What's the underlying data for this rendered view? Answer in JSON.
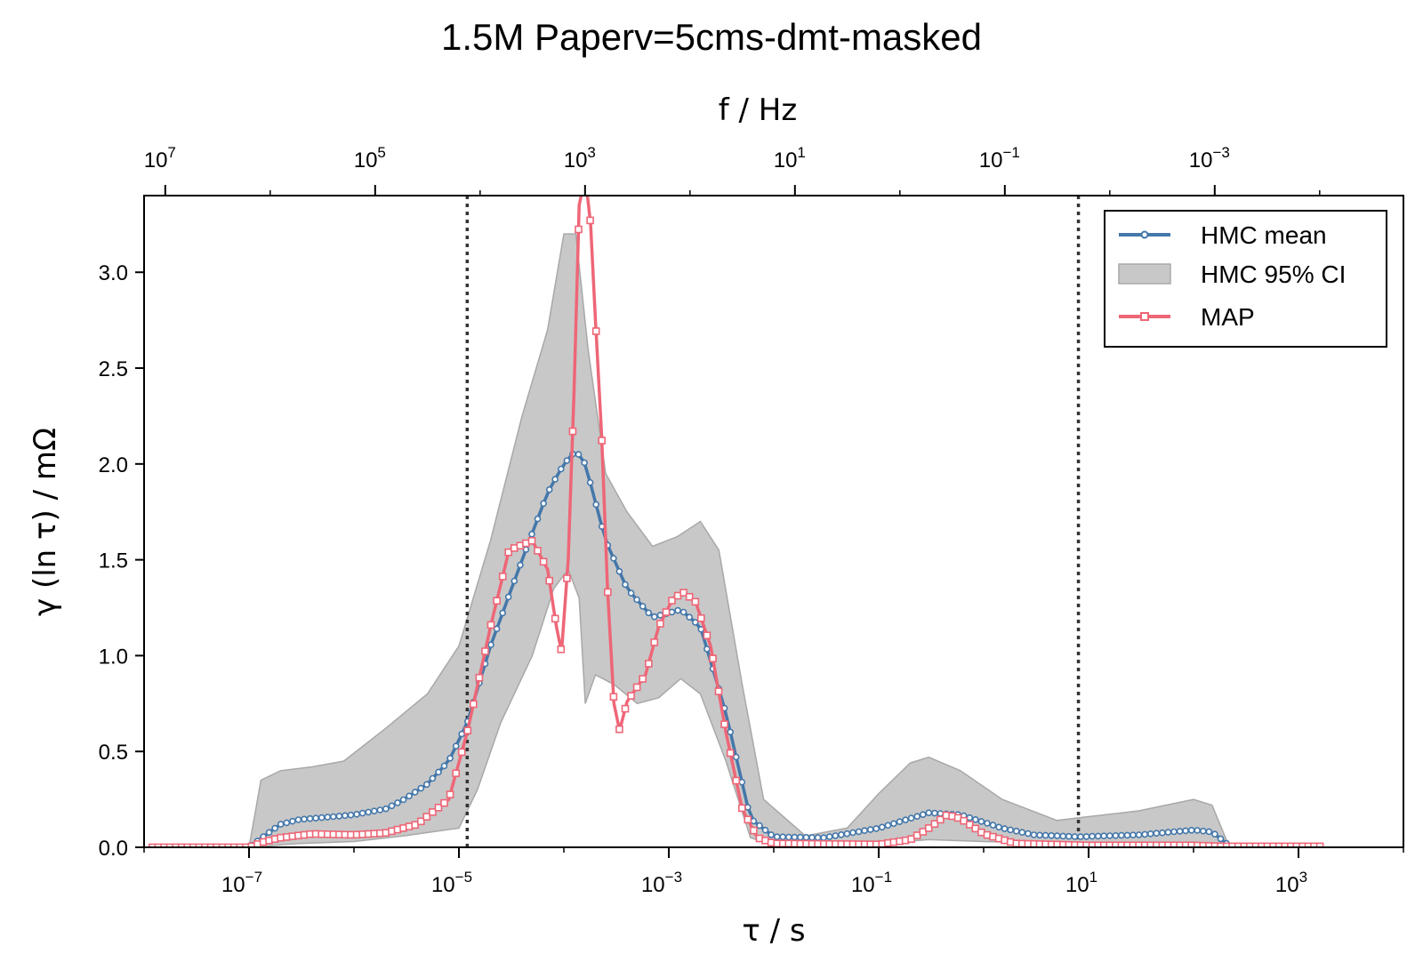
{
  "chart_data": {
    "type": "line",
    "title": "1.5M Paperv=5cms-dmt-masked",
    "xlabel": "τ / s",
    "ylabel": "γ (ln τ) / mΩ",
    "top_xlabel": "f / Hz",
    "xscale": "log",
    "xlim": [
      1e-08,
      10000.0
    ],
    "ylim": [
      0,
      3.4
    ],
    "yticks": [
      "0.0",
      "0.5",
      "1.0",
      "1.5",
      "2.0",
      "2.5",
      "3.0"
    ],
    "xticks": [
      {
        "base": "10",
        "exp": "−7"
      },
      {
        "base": "10",
        "exp": "−5"
      },
      {
        "base": "10",
        "exp": "−3"
      },
      {
        "base": "10",
        "exp": "−1"
      },
      {
        "base": "10",
        "exp": "1"
      },
      {
        "base": "10",
        "exp": "3"
      }
    ],
    "top_xticks": [
      {
        "base": "10",
        "exp": "7"
      },
      {
        "base": "10",
        "exp": "5"
      },
      {
        "base": "10",
        "exp": "3"
      },
      {
        "base": "10",
        "exp": "1"
      },
      {
        "base": "10",
        "exp": "−1"
      },
      {
        "base": "10",
        "exp": "−3"
      }
    ],
    "vlines": [
      1.2e-05,
      8.0
    ],
    "grid": false,
    "legend_position": "top-right",
    "colors": {
      "hmc_mean": "#4477aa",
      "ci": "#c8c8c8",
      "map": "#ee6677",
      "vline": "#333333"
    },
    "series": [
      {
        "name": "HMC mean",
        "style": "line-circle",
        "points": [
          [
            1e-08,
            0
          ],
          [
            1e-07,
            0
          ],
          [
            1.4e-07,
            0.06
          ],
          [
            2e-07,
            0.12
          ],
          [
            3e-07,
            0.145
          ],
          [
            5e-07,
            0.155
          ],
          [
            1e-06,
            0.17
          ],
          [
            2e-06,
            0.2
          ],
          [
            3e-06,
            0.25
          ],
          [
            5e-06,
            0.33
          ],
          [
            8e-06,
            0.45
          ],
          [
            1.2e-05,
            0.65
          ],
          [
            2e-05,
            1.05
          ],
          [
            4e-05,
            1.5
          ],
          [
            7e-05,
            1.85
          ],
          [
            0.0001,
            2.0
          ],
          [
            0.00013,
            2.07
          ],
          [
            0.00016,
            2.0
          ],
          [
            0.00025,
            1.6
          ],
          [
            0.0004,
            1.35
          ],
          [
            0.0007,
            1.2
          ],
          [
            0.0013,
            1.24
          ],
          [
            0.002,
            1.15
          ],
          [
            0.0035,
            0.7
          ],
          [
            0.006,
            0.15
          ],
          [
            0.01,
            0.055
          ],
          [
            0.03,
            0.05
          ],
          [
            0.1,
            0.1
          ],
          [
            0.3,
            0.18
          ],
          [
            0.6,
            0.17
          ],
          [
            1.5,
            0.1
          ],
          [
            3,
            0.065
          ],
          [
            8,
            0.055
          ],
          [
            30,
            0.065
          ],
          [
            100,
            0.09
          ],
          [
            150,
            0.08
          ],
          [
            230,
            0
          ],
          [
            2000,
            0
          ]
        ]
      },
      {
        "name": "HMC 95% CI",
        "style": "band",
        "upper": [
          [
            1e-07,
            0
          ],
          [
            1.3e-07,
            0.35
          ],
          [
            2e-07,
            0.4
          ],
          [
            4e-07,
            0.42
          ],
          [
            8e-07,
            0.45
          ],
          [
            2e-06,
            0.62
          ],
          [
            5e-06,
            0.8
          ],
          [
            1e-05,
            1.05
          ],
          [
            2e-05,
            1.6
          ],
          [
            4e-05,
            2.25
          ],
          [
            7e-05,
            2.7
          ],
          [
            0.0001,
            3.2
          ],
          [
            0.00013,
            3.2
          ],
          [
            0.00017,
            2.6
          ],
          [
            0.00025,
            1.95
          ],
          [
            0.0004,
            1.75
          ],
          [
            0.0007,
            1.57
          ],
          [
            0.0012,
            1.62
          ],
          [
            0.002,
            1.7
          ],
          [
            0.003,
            1.55
          ],
          [
            0.005,
            0.85
          ],
          [
            0.008,
            0.25
          ],
          [
            0.02,
            0.06
          ],
          [
            0.05,
            0.1
          ],
          [
            0.1,
            0.28
          ],
          [
            0.2,
            0.44
          ],
          [
            0.3,
            0.47
          ],
          [
            0.6,
            0.4
          ],
          [
            1.5,
            0.25
          ],
          [
            5,
            0.14
          ],
          [
            10,
            0.16
          ],
          [
            30,
            0.19
          ],
          [
            100,
            0.25
          ],
          [
            150,
            0.22
          ],
          [
            220,
            0
          ]
        ],
        "lower": [
          [
            1e-07,
            0
          ],
          [
            3e-07,
            0.02
          ],
          [
            1e-06,
            0.03
          ],
          [
            3e-06,
            0.06
          ],
          [
            1e-05,
            0.1
          ],
          [
            1.5e-05,
            0.3
          ],
          [
            2.5e-05,
            0.65
          ],
          [
            5e-05,
            1.0
          ],
          [
            8e-05,
            1.35
          ],
          [
            0.00011,
            1.45
          ],
          [
            0.00014,
            1.3
          ],
          [
            0.00016,
            0.75
          ],
          [
            0.0002,
            0.9
          ],
          [
            0.0003,
            0.85
          ],
          [
            0.0005,
            0.75
          ],
          [
            0.0008,
            0.78
          ],
          [
            0.0013,
            0.88
          ],
          [
            0.002,
            0.8
          ],
          [
            0.0035,
            0.45
          ],
          [
            0.006,
            0.05
          ],
          [
            0.01,
            0.01
          ],
          [
            0.05,
            0.01
          ],
          [
            0.1,
            0.02
          ],
          [
            0.3,
            0.04
          ],
          [
            1,
            0.03
          ],
          [
            5,
            0.02
          ],
          [
            100,
            0.02
          ],
          [
            220,
            0
          ]
        ]
      },
      {
        "name": "MAP",
        "style": "line-square",
        "points": [
          [
            1e-08,
            0
          ],
          [
            1e-07,
            0
          ],
          [
            1.4e-07,
            0.03
          ],
          [
            2e-07,
            0.05
          ],
          [
            4e-07,
            0.07
          ],
          [
            1e-06,
            0.065
          ],
          [
            2e-06,
            0.075
          ],
          [
            4e-06,
            0.12
          ],
          [
            8e-06,
            0.25
          ],
          [
            1.2e-05,
            0.6
          ],
          [
            2e-05,
            1.15
          ],
          [
            3e-05,
            1.55
          ],
          [
            5e-05,
            1.6
          ],
          [
            7e-05,
            1.45
          ],
          [
            8.5e-05,
            1.15
          ],
          [
            9.5e-05,
            1.02
          ],
          [
            0.00011,
            1.5
          ],
          [
            0.000125,
            2.37
          ],
          [
            0.00014,
            3.35
          ],
          [
            0.00016,
            3.5
          ],
          [
            0.00018,
            3.25
          ],
          [
            0.0002,
            2.75
          ],
          [
            0.00023,
            2.13
          ],
          [
            0.00026,
            1.36
          ],
          [
            0.0003,
            0.75
          ],
          [
            0.00034,
            0.61
          ],
          [
            0.0004,
            0.76
          ],
          [
            0.0006,
            0.9
          ],
          [
            0.0008,
            1.15
          ],
          [
            0.0011,
            1.3
          ],
          [
            0.0014,
            1.33
          ],
          [
            0.0018,
            1.28
          ],
          [
            0.0025,
            1.05
          ],
          [
            0.0035,
            0.6
          ],
          [
            0.005,
            0.2
          ],
          [
            0.007,
            0.05
          ],
          [
            0.01,
            0.02
          ],
          [
            0.1,
            0.015
          ],
          [
            0.2,
            0.04
          ],
          [
            0.3,
            0.1
          ],
          [
            0.45,
            0.17
          ],
          [
            0.6,
            0.15
          ],
          [
            1,
            0.07
          ],
          [
            2,
            0.02
          ],
          [
            10,
            0.01
          ],
          [
            100,
            0.01
          ],
          [
            200,
            0.005
          ],
          [
            2000,
            0.005
          ]
        ]
      }
    ]
  }
}
